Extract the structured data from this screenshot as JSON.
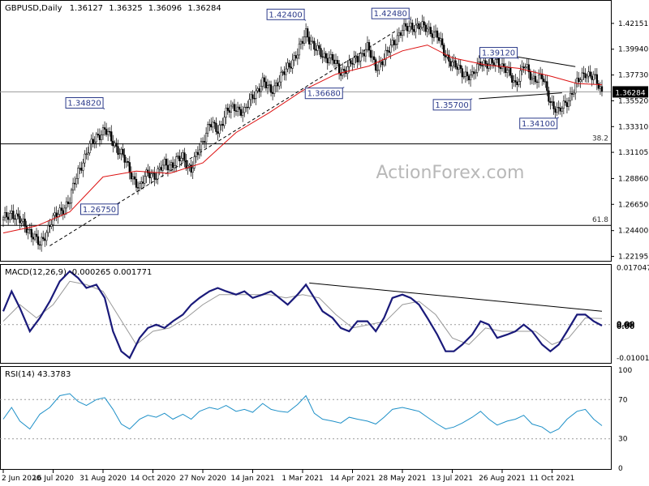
{
  "chart_data": [
    {
      "type": "candlestick",
      "instrument": "GBPUSD,Daily",
      "ohlc": {
        "open": "1.36127",
        "high": "1.36325",
        "low": "1.36096",
        "close": "1.36284"
      },
      "ylim": [
        1.2195,
        1.436
      ],
      "y_ticks": [
        "1.42151",
        "1.39940",
        "1.37730",
        "1.35520",
        "1.33310",
        "1.31105",
        "1.28860",
        "1.26650",
        "1.24400",
        "1.22195"
      ],
      "last_price": "1.36284",
      "x_ticks": [
        "2 Jun 2020",
        "16 Jul 2020",
        "31 Aug 2020",
        "14 Oct 2020",
        "27 Nov 2020",
        "14 Jan 2021",
        "1 Mar 2021",
        "14 Apr 2021",
        "28 May 2021",
        "13 Jul 2021",
        "26 Aug 2021",
        "11 Oct 2021"
      ],
      "close_path": [
        [
          0,
          1.253
        ],
        [
          5,
          1.26
        ],
        [
          10,
          1.252
        ],
        [
          16,
          1.244
        ],
        [
          22,
          1.231
        ],
        [
          28,
          1.25
        ],
        [
          34,
          1.26
        ],
        [
          40,
          1.27
        ],
        [
          45,
          1.295
        ],
        [
          50,
          1.31
        ],
        [
          56,
          1.325
        ],
        [
          61,
          1.33
        ],
        [
          66,
          1.32
        ],
        [
          71,
          1.31
        ],
        [
          76,
          1.295
        ],
        [
          82,
          1.28
        ],
        [
          87,
          1.295
        ],
        [
          92,
          1.29
        ],
        [
          97,
          1.302
        ],
        [
          102,
          1.3
        ],
        [
          108,
          1.308
        ],
        [
          113,
          1.295
        ],
        [
          118,
          1.315
        ],
        [
          124,
          1.335
        ],
        [
          129,
          1.33
        ],
        [
          134,
          1.345
        ],
        [
          140,
          1.35
        ],
        [
          145,
          1.345
        ],
        [
          150,
          1.36
        ],
        [
          156,
          1.37
        ],
        [
          161,
          1.365
        ],
        [
          166,
          1.372
        ],
        [
          171,
          1.385
        ],
        [
          177,
          1.395
        ],
        [
          182,
          1.415
        ],
        [
          187,
          1.4
        ],
        [
          192,
          1.395
        ],
        [
          198,
          1.39
        ],
        [
          203,
          1.38
        ],
        [
          208,
          1.385
        ],
        [
          213,
          1.392
        ],
        [
          219,
          1.4
        ],
        [
          224,
          1.385
        ],
        [
          229,
          1.39
        ],
        [
          234,
          1.405
        ],
        [
          240,
          1.415
        ],
        [
          245,
          1.42
        ],
        [
          250,
          1.418
        ],
        [
          255,
          1.418
        ],
        [
          261,
          1.41
        ],
        [
          266,
          1.395
        ],
        [
          271,
          1.385
        ],
        [
          276,
          1.38
        ],
        [
          282,
          1.375
        ],
        [
          287,
          1.39
        ],
        [
          292,
          1.385
        ],
        [
          297,
          1.39
        ],
        [
          303,
          1.38
        ],
        [
          308,
          1.37
        ],
        [
          313,
          1.385
        ],
        [
          318,
          1.375
        ],
        [
          324,
          1.375
        ],
        [
          329,
          1.355
        ],
        [
          334,
          1.345
        ],
        [
          339,
          1.355
        ],
        [
          345,
          1.37
        ],
        [
          350,
          1.38
        ],
        [
          355,
          1.375
        ],
        [
          360,
          1.3628
        ]
      ],
      "ma_path": [
        [
          0,
          1.242
        ],
        [
          20,
          1.248
        ],
        [
          40,
          1.26
        ],
        [
          60,
          1.29
        ],
        [
          80,
          1.295
        ],
        [
          100,
          1.293
        ],
        [
          120,
          1.302
        ],
        [
          140,
          1.328
        ],
        [
          160,
          1.345
        ],
        [
          180,
          1.364
        ],
        [
          200,
          1.378
        ],
        [
          220,
          1.385
        ],
        [
          240,
          1.398
        ],
        [
          255,
          1.403
        ],
        [
          270,
          1.392
        ],
        [
          290,
          1.386
        ],
        [
          310,
          1.383
        ],
        [
          330,
          1.376
        ],
        [
          345,
          1.37
        ],
        [
          360,
          1.369
        ]
      ],
      "price_labels": [
        {
          "text": "1.42400",
          "t": 182,
          "y": 1.424
        },
        {
          "text": "1.42480",
          "t": 245,
          "y": 1.4248
        },
        {
          "text": "1.34820",
          "t": 61,
          "y": 1.3482
        },
        {
          "text": "1.36680",
          "t": 205,
          "y": 1.3668
        },
        {
          "text": "1.39120",
          "t": 310,
          "y": 1.3912
        },
        {
          "text": "1.35700",
          "t": 282,
          "y": 1.357
        },
        {
          "text": "1.34100",
          "t": 334,
          "y": 1.341
        },
        {
          "text": "1.26750",
          "t": 70,
          "y": 1.2675
        }
      ],
      "fib_levels": [
        {
          "label": "38.2",
          "y": 1.3183
        },
        {
          "label": "61.8",
          "y": 1.2485
        }
      ],
      "watermark": "ActionForex.com"
    },
    {
      "type": "line",
      "name": "MACD",
      "title": "MACD(12,26,9) -0.000265 0.001771",
      "ylim": [
        -0.011,
        0.0172
      ],
      "y_ticks": [
        "0.017047",
        "0.00",
        "-0.010013"
      ],
      "right_labels": [
        "0.00",
        "0.00"
      ],
      "macd_path": [
        [
          0,
          0.004
        ],
        [
          5,
          0.01
        ],
        [
          10,
          0.005
        ],
        [
          16,
          -0.002
        ],
        [
          22,
          0.002
        ],
        [
          28,
          0.007
        ],
        [
          34,
          0.013
        ],
        [
          40,
          0.016
        ],
        [
          45,
          0.014
        ],
        [
          50,
          0.011
        ],
        [
          56,
          0.012
        ],
        [
          61,
          0.008
        ],
        [
          66,
          -0.002
        ],
        [
          71,
          -0.008
        ],
        [
          76,
          -0.01
        ],
        [
          82,
          -0.004
        ],
        [
          87,
          -0.001
        ],
        [
          92,
          0.0
        ],
        [
          97,
          -0.001
        ],
        [
          102,
          0.001
        ],
        [
          108,
          0.003
        ],
        [
          113,
          0.006
        ],
        [
          118,
          0.008
        ],
        [
          124,
          0.01
        ],
        [
          129,
          0.011
        ],
        [
          134,
          0.01
        ],
        [
          140,
          0.009
        ],
        [
          145,
          0.01
        ],
        [
          150,
          0.008
        ],
        [
          156,
          0.009
        ],
        [
          161,
          0.01
        ],
        [
          166,
          0.008
        ],
        [
          171,
          0.006
        ],
        [
          177,
          0.009
        ],
        [
          182,
          0.012
        ],
        [
          187,
          0.008
        ],
        [
          192,
          0.004
        ],
        [
          198,
          0.002
        ],
        [
          203,
          -0.001
        ],
        [
          208,
          -0.002
        ],
        [
          213,
          0.001
        ],
        [
          219,
          0.001
        ],
        [
          224,
          -0.002
        ],
        [
          229,
          0.002
        ],
        [
          234,
          0.008
        ],
        [
          240,
          0.009
        ],
        [
          245,
          0.008
        ],
        [
          250,
          0.006
        ],
        [
          255,
          0.002
        ],
        [
          261,
          -0.003
        ],
        [
          266,
          -0.008
        ],
        [
          271,
          -0.008
        ],
        [
          276,
          -0.006
        ],
        [
          282,
          -0.003
        ],
        [
          287,
          0.001
        ],
        [
          292,
          0.0
        ],
        [
          297,
          -0.004
        ],
        [
          303,
          -0.003
        ],
        [
          308,
          -0.002
        ],
        [
          313,
          0.0
        ],
        [
          318,
          -0.002
        ],
        [
          324,
          -0.006
        ],
        [
          329,
          -0.008
        ],
        [
          334,
          -0.006
        ],
        [
          339,
          -0.002
        ],
        [
          345,
          0.003
        ],
        [
          350,
          0.003
        ],
        [
          355,
          0.001
        ],
        [
          360,
          -0.0003
        ]
      ],
      "signal_path": [
        [
          0,
          0.001
        ],
        [
          10,
          0.006
        ],
        [
          20,
          0.002
        ],
        [
          30,
          0.006
        ],
        [
          40,
          0.013
        ],
        [
          50,
          0.012
        ],
        [
          60,
          0.01
        ],
        [
          70,
          0.002
        ],
        [
          80,
          -0.006
        ],
        [
          90,
          -0.002
        ],
        [
          100,
          -0.001
        ],
        [
          110,
          0.002
        ],
        [
          120,
          0.006
        ],
        [
          130,
          0.009
        ],
        [
          140,
          0.009
        ],
        [
          150,
          0.009
        ],
        [
          160,
          0.009
        ],
        [
          170,
          0.008
        ],
        [
          180,
          0.009
        ],
        [
          190,
          0.008
        ],
        [
          200,
          0.003
        ],
        [
          210,
          -0.001
        ],
        [
          220,
          0.0
        ],
        [
          230,
          0.001
        ],
        [
          240,
          0.006
        ],
        [
          250,
          0.007
        ],
        [
          260,
          0.003
        ],
        [
          270,
          -0.004
        ],
        [
          280,
          -0.006
        ],
        [
          290,
          -0.001
        ],
        [
          300,
          -0.002
        ],
        [
          310,
          -0.002
        ],
        [
          320,
          -0.002
        ],
        [
          330,
          -0.006
        ],
        [
          340,
          -0.004
        ],
        [
          350,
          0.002
        ],
        [
          360,
          0.0018
        ]
      ]
    },
    {
      "type": "line",
      "name": "RSI",
      "title": "RSI(14) 43.3783",
      "ylim": [
        0,
        100
      ],
      "y_ticks": [
        "100",
        "70",
        "30",
        "0"
      ],
      "rsi_path": [
        [
          0,
          50
        ],
        [
          5,
          62
        ],
        [
          10,
          48
        ],
        [
          16,
          40
        ],
        [
          22,
          55
        ],
        [
          28,
          62
        ],
        [
          34,
          74
        ],
        [
          40,
          76
        ],
        [
          45,
          68
        ],
        [
          50,
          64
        ],
        [
          56,
          70
        ],
        [
          61,
          72
        ],
        [
          66,
          60
        ],
        [
          71,
          45
        ],
        [
          76,
          40
        ],
        [
          82,
          50
        ],
        [
          87,
          54
        ],
        [
          92,
          52
        ],
        [
          97,
          56
        ],
        [
          102,
          50
        ],
        [
          108,
          55
        ],
        [
          113,
          50
        ],
        [
          118,
          58
        ],
        [
          124,
          62
        ],
        [
          129,
          60
        ],
        [
          134,
          64
        ],
        [
          140,
          58
        ],
        [
          145,
          60
        ],
        [
          150,
          57
        ],
        [
          156,
          66
        ],
        [
          161,
          60
        ],
        [
          166,
          58
        ],
        [
          171,
          57
        ],
        [
          177,
          65
        ],
        [
          182,
          74
        ],
        [
          187,
          56
        ],
        [
          192,
          50
        ],
        [
          198,
          48
        ],
        [
          203,
          46
        ],
        [
          208,
          52
        ],
        [
          213,
          50
        ],
        [
          219,
          48
        ],
        [
          224,
          45
        ],
        [
          229,
          52
        ],
        [
          234,
          60
        ],
        [
          240,
          62
        ],
        [
          245,
          60
        ],
        [
          250,
          58
        ],
        [
          255,
          52
        ],
        [
          261,
          45
        ],
        [
          266,
          40
        ],
        [
          271,
          42
        ],
        [
          276,
          46
        ],
        [
          282,
          52
        ],
        [
          287,
          58
        ],
        [
          292,
          50
        ],
        [
          297,
          44
        ],
        [
          303,
          48
        ],
        [
          308,
          50
        ],
        [
          313,
          54
        ],
        [
          318,
          45
        ],
        [
          324,
          42
        ],
        [
          329,
          36
        ],
        [
          334,
          40
        ],
        [
          339,
          50
        ],
        [
          345,
          58
        ],
        [
          350,
          60
        ],
        [
          355,
          50
        ],
        [
          360,
          43.38
        ]
      ]
    }
  ]
}
